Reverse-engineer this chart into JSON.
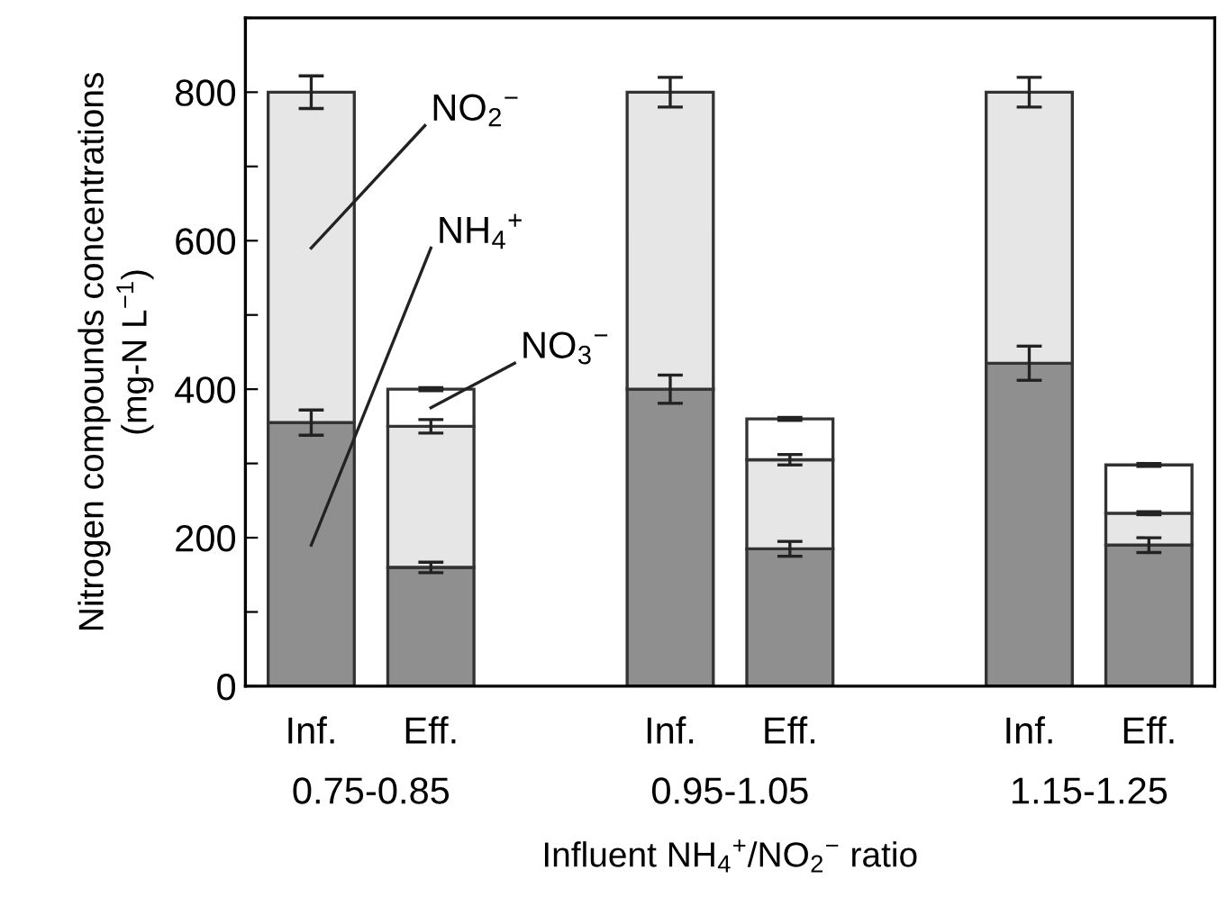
{
  "chart_data": {
    "type": "bar",
    "stacked": true,
    "xlabel": "Influent NH$_{4}$$^{+}$/NO$_{2}$$^{−}$ ratio",
    "ylabel": "Nitrogen compounds concentrations\n(mg-N L$^{−1}$)",
    "categories": [
      "Inf.",
      "Eff.",
      null,
      "Inf.",
      "Eff.",
      null,
      "Inf.",
      "Eff."
    ],
    "annotations": [
      "0.75-0.85",
      "0.95-1.05",
      "1.15-1.25"
    ],
    "series": [
      {
        "name": "NH$_{4}$$^{+}$",
        "color": "#8f8f8f",
        "values": [
          355,
          160,
          null,
          400,
          185,
          null,
          435,
          190
        ],
        "errors": [
          17,
          7,
          null,
          19,
          10,
          null,
          23,
          10
        ]
      },
      {
        "name": "NO$_{2}$$^{−}$",
        "color": "#e6e6e6",
        "values": [
          445,
          190,
          null,
          400,
          120,
          null,
          365,
          43
        ],
        "errors": [
          22,
          9,
          null,
          20,
          7,
          null,
          20,
          2
        ]
      },
      {
        "name": "NO$_{3}$$^{−}$",
        "color": "#ffffff",
        "values": [
          null,
          50,
          null,
          null,
          55,
          null,
          null,
          65
        ],
        "errors": [
          null,
          2,
          null,
          null,
          2,
          null,
          null,
          2
        ]
      }
    ],
    "ylim": [
      0,
      900
    ],
    "yticks": [
      0,
      {
        "value": 100,
        "label": null
      },
      200,
      {
        "value": 300,
        "label": null
      },
      400,
      {
        "value": 500,
        "label": null
      },
      600,
      {
        "value": 700,
        "label": null
      },
      800
    ],
    "grid": false,
    "legend": false
  }
}
